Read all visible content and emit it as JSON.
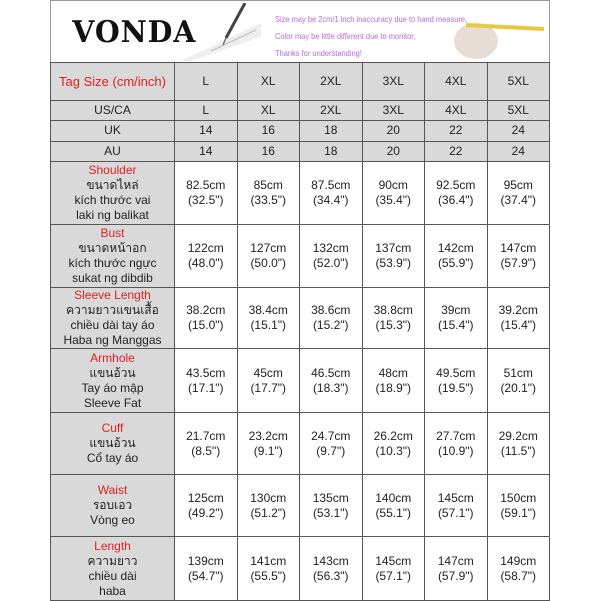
{
  "banner": {
    "brand": "VONDA",
    "notes": [
      "Size may be 2cm/1 inch inaccuracy due to hand measure,",
      "Color may be little different due to monitor,",
      "Thanks for understanding!"
    ]
  },
  "header": {
    "label": "Tag Size (cm/inch)",
    "sizes": [
      "L",
      "XL",
      "2XL",
      "3XL",
      "4XL",
      "5XL"
    ]
  },
  "regions": [
    {
      "label": "US/CA",
      "values": [
        "L",
        "XL",
        "2XL",
        "3XL",
        "4XL",
        "5XL"
      ]
    },
    {
      "label": "UK",
      "values": [
        "14",
        "16",
        "18",
        "20",
        "22",
        "24"
      ]
    },
    {
      "label": "AU",
      "values": [
        "14",
        "16",
        "18",
        "20",
        "22",
        "24"
      ]
    }
  ],
  "measurements": [
    {
      "name": "Shoulder",
      "translations": [
        "ขนาดไหล่",
        "kích thước vai",
        "laki ng balikat"
      ],
      "cm": [
        "82.5cm",
        "85cm",
        "87.5cm",
        "90cm",
        "92.5cm",
        "95cm"
      ],
      "inch": [
        "(32.5\")",
        "(33.5\")",
        "(34.4\")",
        "(35.4\")",
        "(36.4\")",
        "(37.4\")"
      ]
    },
    {
      "name": "Bust",
      "translations": [
        "ขนาดหน้าอก",
        "kích thước ngực",
        "sukat ng dibdib"
      ],
      "cm": [
        "122cm",
        "127cm",
        "132cm",
        "137cm",
        "142cm",
        "147cm"
      ],
      "inch": [
        "(48.0\")",
        "(50.0\")",
        "(52.0\")",
        "(53.9\")",
        "(55.9\")",
        "(57.9\")"
      ]
    },
    {
      "name": "Sleeve Length",
      "translations": [
        "ความยาวแขนเสื้อ",
        "chiều dài tay áo",
        "Haba ng Manggas"
      ],
      "cm": [
        "38.2cm",
        "38.4cm",
        "38.6cm",
        "38.8cm",
        "39cm",
        "39.2cm"
      ],
      "inch": [
        "(15.0\")",
        "(15.1\")",
        "(15.2\")",
        "(15.3\")",
        "(15.4\")",
        "(15.4\")"
      ]
    },
    {
      "name": "Armhole",
      "translations": [
        "แขนอ้วน",
        "Tay áo mập",
        "Sleeve Fat"
      ],
      "cm": [
        "43.5cm",
        "45cm",
        "46.5cm",
        "48cm",
        "49.5cm",
        "51cm"
      ],
      "inch": [
        "(17.1\")",
        "(17.7\")",
        "(18.3\")",
        "(18.9\")",
        "(19.5\")",
        "(20.1\")"
      ]
    },
    {
      "name": "Cuff",
      "translations": [
        "แขนอ้วน",
        "Cổ tay áo"
      ],
      "cm": [
        "21.7cm",
        "23.2cm",
        "24.7cm",
        "26.2cm",
        "27.7cm",
        "29.2cm"
      ],
      "inch": [
        "(8.5\")",
        "(9.1\")",
        "(9.7\")",
        "(10.3\")",
        "(10.9\")",
        "(11.5\")"
      ]
    },
    {
      "name": "Waist",
      "translations": [
        "รอบเอว",
        "Vòng eo"
      ],
      "cm": [
        "125cm",
        "130cm",
        "135cm",
        "140cm",
        "145cm",
        "150cm"
      ],
      "inch": [
        "(49.2\")",
        "(51.2\")",
        "(53.1\")",
        "(55.1\")",
        "(57.1\")",
        "(59.1\")"
      ]
    },
    {
      "name": "Length",
      "translations": [
        "ความยาว",
        "chiều dài",
        "haba"
      ],
      "cm": [
        "139cm",
        "141cm",
        "143cm",
        "145cm",
        "147cm",
        "149cm"
      ],
      "inch": [
        "(54.7\")",
        "(55.5\")",
        "(56.3\")",
        "(57.1\")",
        "(57.9\")",
        "(58.7\")"
      ]
    }
  ]
}
